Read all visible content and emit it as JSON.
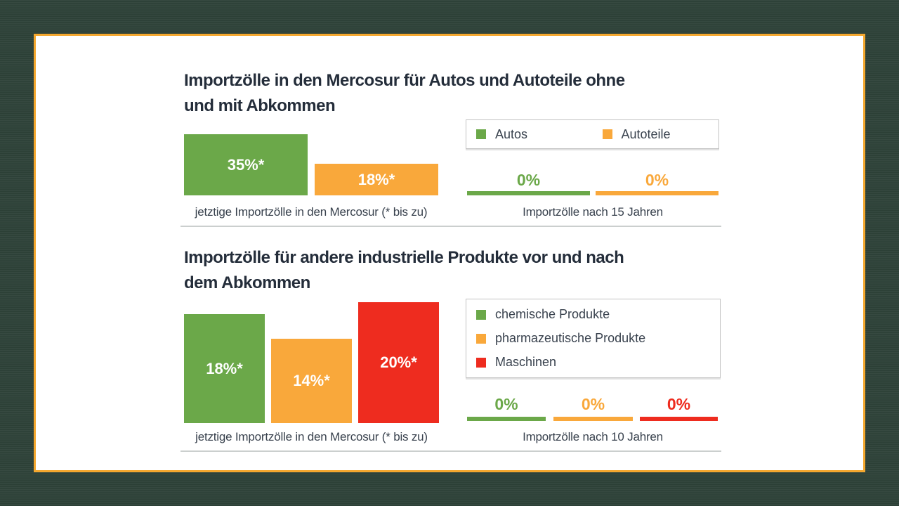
{
  "colors": {
    "background": "#2d4138",
    "card_border": "#f5a82f",
    "title_text": "#242d3a",
    "caption_text": "#39424e",
    "green": "#6ba849",
    "orange": "#f9a83b",
    "red": "#ee2c1f"
  },
  "charts": [
    {
      "title_lines": [
        "Importzölle in den Mercosur für Autos und Autoteile ohne",
        "und mit Abkommen"
      ],
      "legend": [
        {
          "label": "Autos"
        },
        {
          "label": "Autoteile"
        }
      ],
      "bars": [
        {
          "label": "35%*"
        },
        {
          "label": "18%*"
        }
      ],
      "after": [
        {
          "label": "0%"
        },
        {
          "label": "0%"
        }
      ],
      "caption_before": "jetztige Importzölle in den Mercosur (* bis zu)",
      "caption_after": "Importzölle nach 15 Jahren"
    },
    {
      "title_lines": [
        "Importzölle für andere industrielle Produkte vor und nach",
        "dem Abkommen"
      ],
      "legend": [
        {
          "label": "chemische Produkte"
        },
        {
          "label": "pharmazeutische Produkte"
        },
        {
          "label": "Maschinen"
        }
      ],
      "bars": [
        {
          "label": "18%*"
        },
        {
          "label": "14%*"
        },
        {
          "label": "20%*"
        }
      ],
      "after": [
        {
          "label": "0%"
        },
        {
          "label": "0%"
        },
        {
          "label": "0%"
        }
      ],
      "caption_before": "jetztige Importzölle in den Mercosur (* bis zu)",
      "caption_after": "Importzölle nach 10 Jahren"
    }
  ],
  "chart_data": [
    {
      "type": "bar",
      "title": "Importzölle in den Mercosur für Autos und Autoteile ohne und mit Abkommen",
      "unit": "percent",
      "categories": [
        "Autos",
        "Autoteile"
      ],
      "category_colors": [
        "#6ba849",
        "#f9a83b"
      ],
      "series": [
        {
          "name": "jetztige Importzölle in den Mercosur (* bis zu)",
          "values": [
            35,
            18
          ],
          "value_labels": [
            "35%*",
            "18%*"
          ]
        },
        {
          "name": "Importzölle nach 15 Jahren",
          "values": [
            0,
            0
          ],
          "value_labels": [
            "0%",
            "0%"
          ]
        }
      ],
      "note": "* bis zu",
      "legend_position": "right"
    },
    {
      "type": "bar",
      "title": "Importzölle für andere industrielle Produkte vor und nach dem Abkommen",
      "unit": "percent",
      "categories": [
        "chemische Produkte",
        "pharmazeutische Produkte",
        "Maschinen"
      ],
      "category_colors": [
        "#6ba849",
        "#f9a83b",
        "#ee2c1f"
      ],
      "series": [
        {
          "name": "jetztige Importzölle in den Mercosur (* bis zu)",
          "values": [
            18,
            14,
            20
          ],
          "value_labels": [
            "18%*",
            "14%*",
            "20%*"
          ]
        },
        {
          "name": "Importzölle nach 10 Jahren",
          "values": [
            0,
            0,
            0
          ],
          "value_labels": [
            "0%",
            "0%",
            "0%"
          ]
        }
      ],
      "note": "* bis zu",
      "legend_position": "right"
    }
  ]
}
